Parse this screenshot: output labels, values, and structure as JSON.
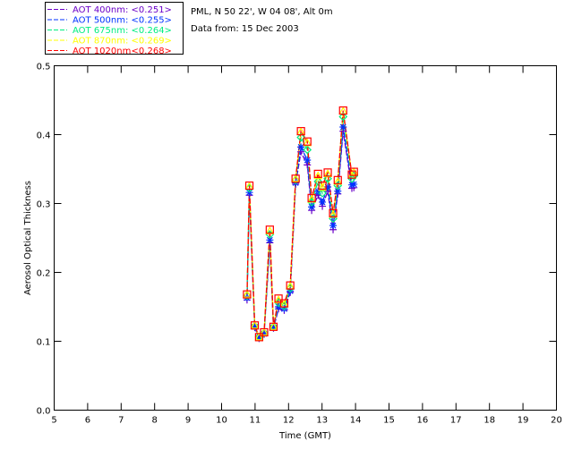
{
  "header": {
    "location": "PML, N 50 22', W 04 08', Alt 0m",
    "date": "Data from: 15 Dec 2003"
  },
  "chart_data": {
    "type": "line",
    "title": "",
    "xlabel": "Time (GMT)",
    "ylabel": "Aerosol Optical Thickness",
    "xlim": [
      5,
      20
    ],
    "ylim": [
      0,
      0.5
    ],
    "xticks": [
      "5",
      "6",
      "7",
      "8",
      "9",
      "10",
      "11",
      "12",
      "13",
      "14",
      "15",
      "16",
      "17",
      "18",
      "19",
      "20"
    ],
    "yticks": [
      "0.0",
      "0.1",
      "0.2",
      "0.3",
      "0.4",
      "0.5"
    ],
    "legend_position": "top-left-outside",
    "x": [
      10.76,
      10.83,
      10.99,
      11.12,
      11.27,
      11.44,
      11.55,
      11.7,
      11.87,
      12.05,
      12.21,
      12.37,
      12.56,
      12.69,
      12.88,
      13.01,
      13.17,
      13.33,
      13.47,
      13.63,
      13.89,
      13.95
    ],
    "series": [
      {
        "name": "AOT  400nm",
        "mean": "<0.251>",
        "color": "#6a00c8",
        "marker": "plus",
        "values": [
          0.16,
          0.312,
          0.12,
          0.104,
          0.11,
          0.243,
          0.119,
          0.147,
          0.145,
          0.171,
          0.328,
          0.375,
          0.356,
          0.29,
          0.312,
          0.296,
          0.318,
          0.262,
          0.314,
          0.405,
          0.322,
          0.323
        ]
      },
      {
        "name": "AOT  500nm",
        "mean": "<0.255>",
        "color": "#0033ff",
        "marker": "asterisk",
        "values": [
          0.163,
          0.316,
          0.121,
          0.105,
          0.111,
          0.247,
          0.12,
          0.15,
          0.147,
          0.173,
          0.33,
          0.382,
          0.363,
          0.295,
          0.318,
          0.302,
          0.324,
          0.268,
          0.318,
          0.411,
          0.327,
          0.328
        ]
      },
      {
        "name": "AOT  675nm",
        "mean": "<0.264>",
        "color": "#00ee80",
        "marker": "diamond",
        "values": [
          0.166,
          0.322,
          0.122,
          0.106,
          0.112,
          0.255,
          0.121,
          0.156,
          0.151,
          0.177,
          0.334,
          0.396,
          0.378,
          0.302,
          0.332,
          0.315,
          0.336,
          0.278,
          0.326,
          0.426,
          0.336,
          0.34
        ]
      },
      {
        "name": "AOT  870nm",
        "mean": "<0.269>",
        "color": "#ffff00",
        "marker": "triangle",
        "values": [
          0.168,
          0.325,
          0.123,
          0.106,
          0.113,
          0.26,
          0.121,
          0.16,
          0.154,
          0.18,
          0.336,
          0.404,
          0.388,
          0.306,
          0.34,
          0.323,
          0.343,
          0.284,
          0.332,
          0.434,
          0.341,
          0.346
        ]
      },
      {
        "name": "AOT 1020nm",
        "mean": "<0.268>",
        "color": "#ff0000",
        "marker": "square",
        "values": [
          0.168,
          0.326,
          0.123,
          0.106,
          0.113,
          0.262,
          0.121,
          0.162,
          0.155,
          0.181,
          0.336,
          0.405,
          0.39,
          0.308,
          0.343,
          0.326,
          0.345,
          0.286,
          0.334,
          0.435,
          0.342,
          0.346
        ]
      }
    ]
  }
}
